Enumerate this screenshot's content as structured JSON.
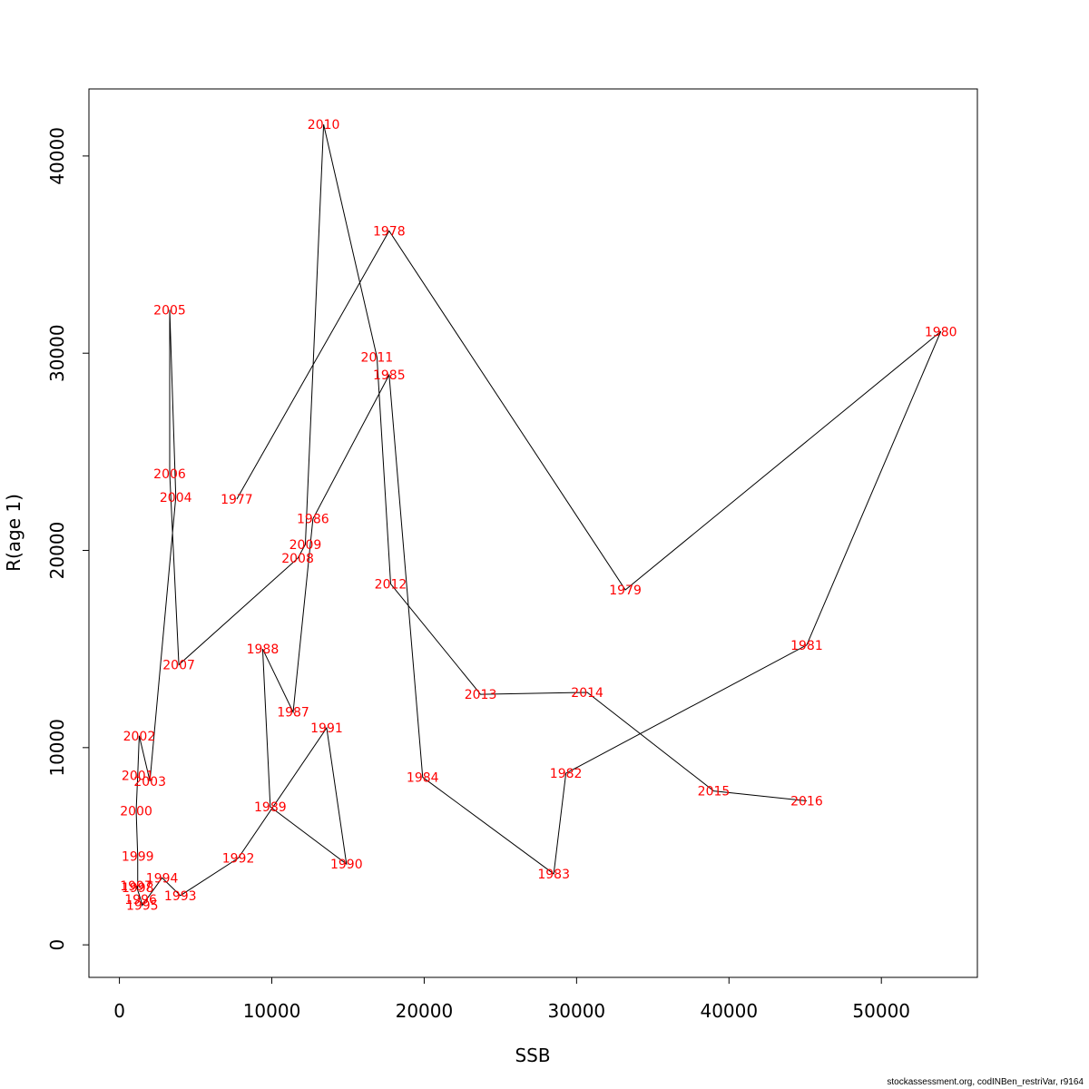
{
  "chart_data": {
    "type": "line",
    "subtype": "stock-recruitment trajectory with year labels",
    "xlabel": "SSB",
    "ylabel": "R(age 1)",
    "xlim": [
      -2000,
      56300
    ],
    "ylim": [
      -1650,
      43400
    ],
    "x_ticks": [
      0,
      10000,
      20000,
      30000,
      40000,
      50000
    ],
    "x_tick_labels": [
      "0",
      "10000",
      "20000",
      "30000",
      "40000",
      "50000"
    ],
    "y_ticks": [
      0,
      10000,
      20000,
      30000,
      40000
    ],
    "y_tick_labels": [
      "0",
      "10000",
      "20000",
      "30000",
      "40000"
    ],
    "series": [
      {
        "name": "SSB vs R(age 1)",
        "line_color": "#000000",
        "label_color": "#ff0000",
        "points": [
          {
            "year": "1977",
            "x": 7700,
            "y": 22600
          },
          {
            "year": "1978",
            "x": 17700,
            "y": 36200
          },
          {
            "year": "1979",
            "x": 33200,
            "y": 18000
          },
          {
            "year": "1980",
            "x": 53900,
            "y": 31100
          },
          {
            "year": "1981",
            "x": 45100,
            "y": 15200
          },
          {
            "year": "1982",
            "x": 29300,
            "y": 8700
          },
          {
            "year": "1983",
            "x": 28500,
            "y": 3600
          },
          {
            "year": "1984",
            "x": 19900,
            "y": 8500
          },
          {
            "year": "1985",
            "x": 17700,
            "y": 28900
          },
          {
            "year": "1986",
            "x": 12700,
            "y": 21600
          },
          {
            "year": "1987",
            "x": 11400,
            "y": 11800
          },
          {
            "year": "1988",
            "x": 9400,
            "y": 15000
          },
          {
            "year": "1989",
            "x": 9900,
            "y": 7000
          },
          {
            "year": "1990",
            "x": 14900,
            "y": 4100
          },
          {
            "year": "1991",
            "x": 13600,
            "y": 11000
          },
          {
            "year": "1992",
            "x": 7800,
            "y": 4400
          },
          {
            "year": "1993",
            "x": 4000,
            "y": 2500
          },
          {
            "year": "1994",
            "x": 2800,
            "y": 3400
          },
          {
            "year": "1995",
            "x": 1500,
            "y": 2000
          },
          {
            "year": "1996",
            "x": 1400,
            "y": 2300
          },
          {
            "year": "1997",
            "x": 1100,
            "y": 3000
          },
          {
            "year": "1998",
            "x": 1200,
            "y": 2900
          },
          {
            "year": "1999",
            "x": 1200,
            "y": 4500
          },
          {
            "year": "2000",
            "x": 1100,
            "y": 6800
          },
          {
            "year": "2001",
            "x": 1200,
            "y": 8600
          },
          {
            "year": "2002",
            "x": 1300,
            "y": 10600
          },
          {
            "year": "2003",
            "x": 2000,
            "y": 8300
          },
          {
            "year": "2004",
            "x": 3700,
            "y": 22700
          },
          {
            "year": "2005",
            "x": 3300,
            "y": 32200
          },
          {
            "year": "2006",
            "x": 3300,
            "y": 23900
          },
          {
            "year": "2007",
            "x": 3900,
            "y": 14200
          },
          {
            "year": "2008",
            "x": 11700,
            "y": 19600
          },
          {
            "year": "2009",
            "x": 12200,
            "y": 20300
          },
          {
            "year": "2010",
            "x": 13400,
            "y": 41600
          },
          {
            "year": "2011",
            "x": 16900,
            "y": 29800
          },
          {
            "year": "2012",
            "x": 17800,
            "y": 18300
          },
          {
            "year": "2013",
            "x": 23700,
            "y": 12700
          },
          {
            "year": "2014",
            "x": 30700,
            "y": 12800
          },
          {
            "year": "2015",
            "x": 39000,
            "y": 7800
          },
          {
            "year": "2016",
            "x": 45100,
            "y": 7300
          }
        ]
      }
    ]
  },
  "credit": "stockassessment.org, codINBen_restriVar, r9164"
}
